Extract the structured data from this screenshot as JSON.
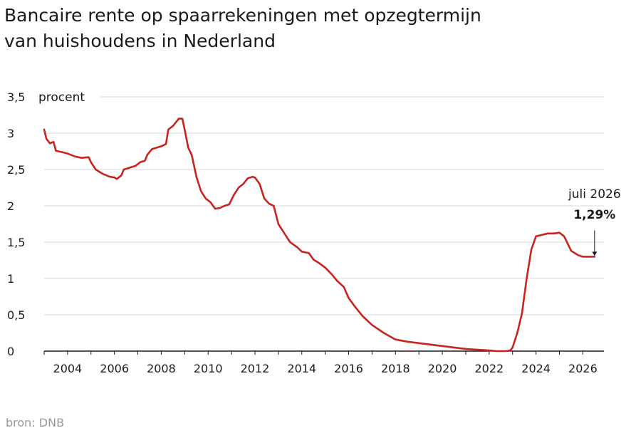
{
  "title_lines": [
    "Bancaire rente op spaarrekeningen met opzegtermijn",
    "van huishoudens in Nederland"
  ],
  "source": "bron: DNB",
  "colors": {
    "line": "#c8231e",
    "grid": "#d9d9d9",
    "axis": "#1a1a1a"
  },
  "chart_data": {
    "type": "line",
    "ylabel": "procent",
    "ylim": [
      0,
      3.5
    ],
    "yticks": [
      0,
      0.5,
      1,
      1.5,
      2,
      2.5,
      3,
      3.5
    ],
    "ytick_labels": [
      "0",
      "0,5",
      "1",
      "1,5",
      "2",
      "2,5",
      "3",
      "3,5"
    ],
    "xlim": [
      2003.0,
      2026.9
    ],
    "xticks": [
      2004,
      2006,
      2008,
      2010,
      2012,
      2014,
      2016,
      2018,
      2020,
      2022,
      2024,
      2026
    ],
    "xtick_labels": [
      "2004",
      "2006",
      "2008",
      "2010",
      "2012",
      "2014",
      "2016",
      "2018",
      "2020",
      "2022",
      "2024",
      "2026"
    ],
    "grid": true,
    "series": [
      {
        "x": [
          2003.0,
          2003.1,
          2003.25,
          2003.4,
          2003.5,
          2003.6,
          2003.75,
          2004.0,
          2004.3,
          2004.6,
          2004.9,
          2005.0,
          2005.2,
          2005.5,
          2005.8,
          2006.0,
          2006.1,
          2006.3,
          2006.4,
          2006.6,
          2006.9,
          2007.1,
          2007.3,
          2007.4,
          2007.6,
          2007.8,
          2008.0,
          2008.2,
          2008.3,
          2008.5,
          2008.75,
          2008.9,
          2009.0,
          2009.15,
          2009.3,
          2009.5,
          2009.7,
          2009.9,
          2010.1,
          2010.3,
          2010.5,
          2010.7,
          2010.9,
          2011.1,
          2011.3,
          2011.5,
          2011.7,
          2011.9,
          2012.0,
          2012.2,
          2012.4,
          2012.6,
          2012.8,
          2013.0,
          2013.2,
          2013.5,
          2013.8,
          2014.0,
          2014.3,
          2014.5,
          2014.7,
          2015.0,
          2015.3,
          2015.5,
          2015.8,
          2016.0,
          2016.3,
          2016.6,
          2017.0,
          2017.5,
          2018.0,
          2018.5,
          2019.0,
          2019.5,
          2020.0,
          2020.5,
          2021.0,
          2021.5,
          2022.0,
          2022.3,
          2022.5,
          2022.7,
          2022.9,
          2023.0,
          2023.2,
          2023.4,
          2023.6,
          2023.8,
          2024.0,
          2024.5,
          2024.75,
          2025.0,
          2025.2,
          2025.5,
          2025.8,
          2026.0,
          2026.3,
          2026.5
        ],
        "y": [
          3.05,
          2.92,
          2.86,
          2.88,
          2.76,
          2.75,
          2.74,
          2.72,
          2.68,
          2.66,
          2.67,
          2.6,
          2.5,
          2.44,
          2.4,
          2.39,
          2.37,
          2.42,
          2.5,
          2.52,
          2.55,
          2.6,
          2.62,
          2.7,
          2.78,
          2.8,
          2.82,
          2.85,
          3.05,
          3.1,
          3.2,
          3.2,
          3.05,
          2.8,
          2.7,
          2.4,
          2.2,
          2.1,
          2.05,
          1.96,
          1.97,
          2.0,
          2.02,
          2.15,
          2.25,
          2.3,
          2.38,
          2.4,
          2.39,
          2.3,
          2.1,
          2.03,
          2.0,
          1.75,
          1.65,
          1.5,
          1.43,
          1.37,
          1.35,
          1.26,
          1.22,
          1.15,
          1.05,
          0.97,
          0.88,
          0.73,
          0.6,
          0.48,
          0.36,
          0.25,
          0.16,
          0.13,
          0.11,
          0.09,
          0.07,
          0.05,
          0.03,
          0.02,
          0.01,
          0.0,
          0.0,
          0.0,
          0.01,
          0.05,
          0.25,
          0.52,
          1.0,
          1.4,
          1.58,
          1.62,
          1.62,
          1.63,
          1.58,
          1.38,
          1.32,
          1.3,
          1.3,
          1.3
        ]
      }
    ],
    "annotation": {
      "date": "juli 2026",
      "value": "1,29%",
      "x": 2026.5,
      "y": 1.29
    }
  }
}
